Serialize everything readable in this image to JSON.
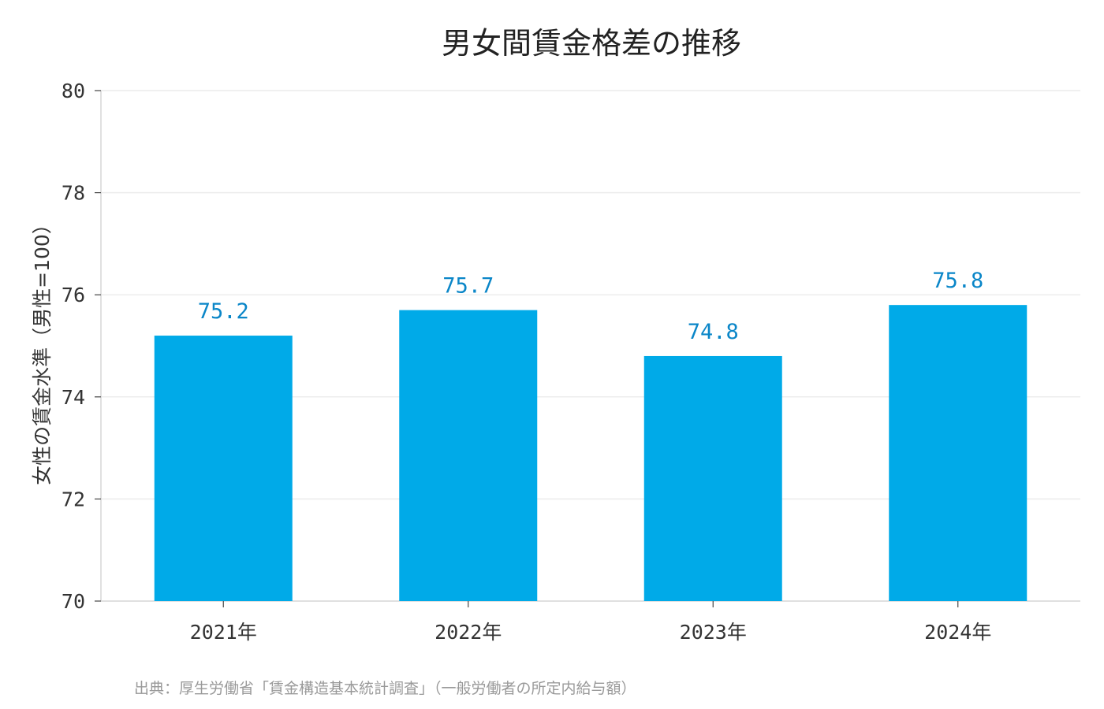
{
  "chart_data": {
    "type": "bar",
    "title": "男女間賃金格差の推移",
    "ylabel": "女性の賃金水準（男性=100）",
    "xlabel": "",
    "categories": [
      "2021年",
      "2022年",
      "2023年",
      "2024年"
    ],
    "values": [
      75.2,
      75.7,
      74.8,
      75.8
    ],
    "value_labels": [
      "75.2",
      "75.7",
      "74.8",
      "75.8"
    ],
    "ylim": [
      70,
      80
    ],
    "yticks": [
      70,
      72,
      74,
      76,
      78,
      80
    ],
    "grid": "horizontal",
    "bar_color": "#00aae8",
    "label_color": "#0a86c8",
    "source": "出典：厚生労働省「賃金構造基本統計調査」（一般労働者の所定内給与額）"
  }
}
